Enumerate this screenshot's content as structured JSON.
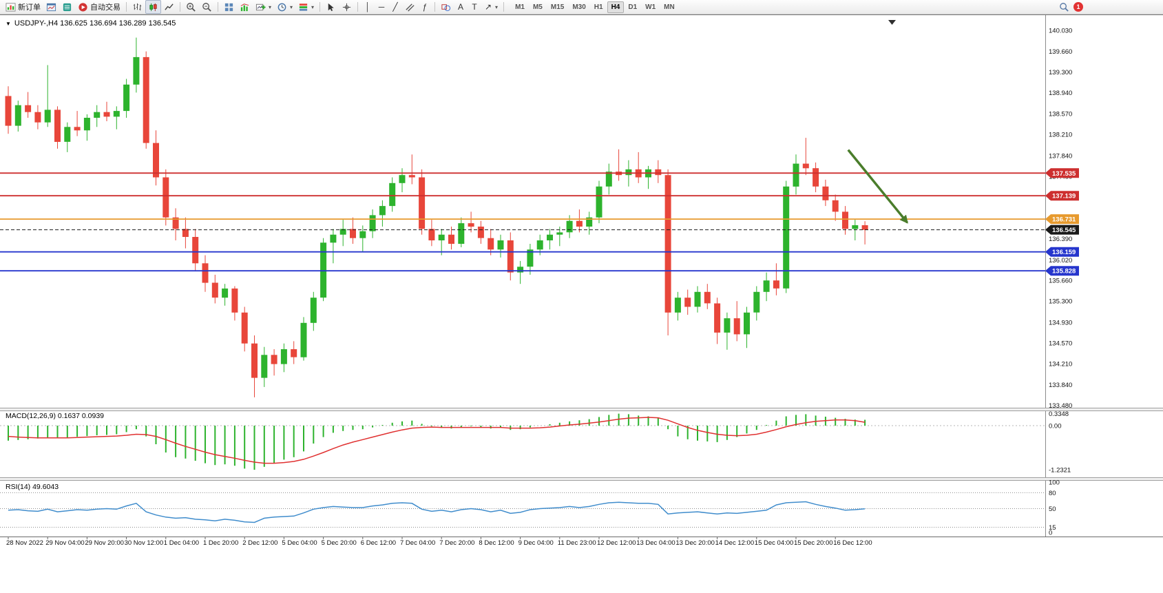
{
  "ui": {
    "caret": "▾",
    "header_caret": "▼"
  },
  "toolbar": {
    "new_order_label": "新订单",
    "autotrading_label": "自动交易",
    "drawing_glyphs": {
      "vertical_line": "│",
      "horizontal_line": "─",
      "trendline": "╱",
      "fibonacci": "ƒ",
      "text": "A",
      "label": "T",
      "arrow": "↗"
    },
    "timeframes": [
      "M1",
      "M5",
      "M15",
      "M30",
      "H1",
      "H4",
      "D1",
      "W1",
      "MN"
    ],
    "active_timeframe": "H4",
    "notification_count": "1"
  },
  "chart_data": {
    "type": "candlestick",
    "symbol": "USDJPY-",
    "period": "H4",
    "header": "USDJPY-,H4  136.625 136.694 136.289 136.545",
    "ohlc_display": {
      "open": "136.625",
      "high": "136.694",
      "low": "136.289",
      "close": "136.545"
    },
    "colors": {
      "bull": "#2db32d",
      "bear": "#e8463a",
      "macd_hist": "#2db32d",
      "macd_signal": "#e03030",
      "rsi": "#3f8ccc",
      "arrow": "#4a7d2b"
    },
    "price_axis_ticks": [
      "140.030",
      "139.660",
      "139.300",
      "138.940",
      "138.570",
      "138.210",
      "137.840",
      "137.480",
      "137.110",
      "136.760",
      "136.390",
      "136.020",
      "135.660",
      "135.300",
      "134.930",
      "134.570",
      "134.210",
      "133.840",
      "133.480"
    ],
    "levels": [
      {
        "price": 137.535,
        "label": "137.535",
        "color": "#cd2f2f"
      },
      {
        "price": 137.139,
        "label": "137.139",
        "color": "#cd2f2f"
      },
      {
        "price": 136.731,
        "label": "136.731",
        "color": "#e79a2e"
      },
      {
        "price": 136.159,
        "label": "136.159",
        "color": "#2636cd"
      },
      {
        "price": 135.828,
        "label": "135.828",
        "color": "#2636cd"
      }
    ],
    "bid": {
      "price": 136.545,
      "label": "136.545",
      "color": "#1a1a1a"
    },
    "candles": [
      [
        138.88,
        139.05,
        138.22,
        138.36
      ],
      [
        138.36,
        138.8,
        138.26,
        138.72
      ],
      [
        138.72,
        138.95,
        138.5,
        138.6
      ],
      [
        138.6,
        138.72,
        138.3,
        138.42
      ],
      [
        138.42,
        139.42,
        138.34,
        138.64
      ],
      [
        138.64,
        138.7,
        137.96,
        138.08
      ],
      [
        138.08,
        138.42,
        137.9,
        138.34
      ],
      [
        138.34,
        138.62,
        138.18,
        138.28
      ],
      [
        138.28,
        138.56,
        138.1,
        138.5
      ],
      [
        138.5,
        138.72,
        138.34,
        138.6
      ],
      [
        138.6,
        138.78,
        138.44,
        138.52
      ],
      [
        138.52,
        138.7,
        138.3,
        138.62
      ],
      [
        138.62,
        139.18,
        138.5,
        139.08
      ],
      [
        139.08,
        139.9,
        138.94,
        139.56
      ],
      [
        139.56,
        139.66,
        137.96,
        138.06
      ],
      [
        138.06,
        138.28,
        137.32,
        137.46
      ],
      [
        137.46,
        137.6,
        136.62,
        136.76
      ],
      [
        136.76,
        136.92,
        136.36,
        136.56
      ],
      [
        136.56,
        136.76,
        136.22,
        136.42
      ],
      [
        136.42,
        136.56,
        135.82,
        135.96
      ],
      [
        135.96,
        136.1,
        135.46,
        135.62
      ],
      [
        135.62,
        135.76,
        135.26,
        135.36
      ],
      [
        135.36,
        135.6,
        135.22,
        135.52
      ],
      [
        135.52,
        135.56,
        134.96,
        135.1
      ],
      [
        135.1,
        135.2,
        134.42,
        134.56
      ],
      [
        134.56,
        134.7,
        133.62,
        133.96
      ],
      [
        133.96,
        134.5,
        133.8,
        134.36
      ],
      [
        134.36,
        134.46,
        134.0,
        134.2
      ],
      [
        134.2,
        134.56,
        134.06,
        134.46
      ],
      [
        134.46,
        134.6,
        134.2,
        134.32
      ],
      [
        134.32,
        135.02,
        134.26,
        134.92
      ],
      [
        134.92,
        135.46,
        134.78,
        135.36
      ],
      [
        135.36,
        136.4,
        135.3,
        136.32
      ],
      [
        136.32,
        136.56,
        135.96,
        136.46
      ],
      [
        136.46,
        136.72,
        136.26,
        136.56
      ],
      [
        136.56,
        136.76,
        136.3,
        136.4
      ],
      [
        136.4,
        136.62,
        136.16,
        136.52
      ],
      [
        136.52,
        136.9,
        136.4,
        136.8
      ],
      [
        136.8,
        137.06,
        136.6,
        136.96
      ],
      [
        136.96,
        137.46,
        136.86,
        137.36
      ],
      [
        137.36,
        137.62,
        137.2,
        137.5
      ],
      [
        137.5,
        137.86,
        137.34,
        137.46
      ],
      [
        137.46,
        137.6,
        136.46,
        136.56
      ],
      [
        136.56,
        136.72,
        136.26,
        136.36
      ],
      [
        136.36,
        136.56,
        136.1,
        136.46
      ],
      [
        136.46,
        136.6,
        136.2,
        136.3
      ],
      [
        136.3,
        136.76,
        136.24,
        136.66
      ],
      [
        136.66,
        136.86,
        136.5,
        136.6
      ],
      [
        136.6,
        136.7,
        136.3,
        136.4
      ],
      [
        136.4,
        136.56,
        136.1,
        136.2
      ],
      [
        136.2,
        136.46,
        136.06,
        136.36
      ],
      [
        136.36,
        136.5,
        135.66,
        135.8
      ],
      [
        135.8,
        136.0,
        135.6,
        135.9
      ],
      [
        135.9,
        136.3,
        135.76,
        136.2
      ],
      [
        136.2,
        136.46,
        136.1,
        136.36
      ],
      [
        136.36,
        136.56,
        136.2,
        136.46
      ],
      [
        136.46,
        136.6,
        136.26,
        136.5
      ],
      [
        136.5,
        136.8,
        136.4,
        136.7
      ],
      [
        136.7,
        136.9,
        136.5,
        136.6
      ],
      [
        136.6,
        136.86,
        136.46,
        136.76
      ],
      [
        136.76,
        137.4,
        136.66,
        137.3
      ],
      [
        137.3,
        137.7,
        137.16,
        137.56
      ],
      [
        137.56,
        137.95,
        137.4,
        137.5
      ],
      [
        137.5,
        137.76,
        137.3,
        137.6
      ],
      [
        137.6,
        137.9,
        137.36,
        137.46
      ],
      [
        137.46,
        137.66,
        137.26,
        137.6
      ],
      [
        137.6,
        137.76,
        137.36,
        137.5
      ],
      [
        137.5,
        137.6,
        134.7,
        135.1
      ],
      [
        135.1,
        135.46,
        134.96,
        135.36
      ],
      [
        135.36,
        135.5,
        135.06,
        135.2
      ],
      [
        135.2,
        135.56,
        135.1,
        135.46
      ],
      [
        135.46,
        135.6,
        135.16,
        135.26
      ],
      [
        135.26,
        135.36,
        134.55,
        134.75
      ],
      [
        134.75,
        135.1,
        134.45,
        135.0
      ],
      [
        135.0,
        135.3,
        134.6,
        134.72
      ],
      [
        134.72,
        135.2,
        134.48,
        135.1
      ],
      [
        135.1,
        135.56,
        134.96,
        135.46
      ],
      [
        135.46,
        135.8,
        135.3,
        135.66
      ],
      [
        135.66,
        135.96,
        135.4,
        135.52
      ],
      [
        135.52,
        137.4,
        135.44,
        137.3
      ],
      [
        137.3,
        137.86,
        137.16,
        137.7
      ],
      [
        137.7,
        138.15,
        137.5,
        137.62
      ],
      [
        137.62,
        137.72,
        137.2,
        137.3
      ],
      [
        137.3,
        137.42,
        136.96,
        137.06
      ],
      [
        137.06,
        137.16,
        136.7,
        136.86
      ],
      [
        136.86,
        136.96,
        136.46,
        136.56
      ],
      [
        136.56,
        136.72,
        136.36,
        136.625
      ],
      [
        136.625,
        136.694,
        136.289,
        136.545
      ]
    ],
    "time_labels": [
      "28 Nov 2022",
      "29 Nov 04:00",
      "29 Nov 20:00",
      "30 Nov 12:00",
      "1 Dec 04:00",
      "1 Dec 20:00",
      "2 Dec 12:00",
      "5 Dec 04:00",
      "5 Dec 20:00",
      "6 Dec 12:00",
      "7 Dec 04:00",
      "7 Dec 20:00",
      "8 Dec 12:00",
      "9 Dec 04:00",
      "11 Dec 23:00",
      "12 Dec 12:00",
      "13 Dec 04:00",
      "13 Dec 20:00",
      "14 Dec 12:00",
      "15 Dec 04:00",
      "15 Dec 20:00",
      "16 Dec 12:00"
    ],
    "label_step": 4,
    "arrow": {
      "from": {
        "bar": 85.3,
        "price": 137.94
      },
      "to": {
        "bar": 91.3,
        "price": 136.67
      }
    },
    "macd": {
      "label": "MACD(12,26,9) 0.1637 0.0939",
      "axis": [
        {
          "label": "0.3348",
          "value": 0.3348
        },
        {
          "label": "0.00",
          "value": 0
        },
        {
          "label": "-1.2321",
          "value": -1.2321
        }
      ],
      "values": [
        -0.42,
        -0.4,
        -0.38,
        -0.36,
        -0.33,
        -0.35,
        -0.34,
        -0.31,
        -0.29,
        -0.27,
        -0.26,
        -0.24,
        -0.18,
        -0.1,
        -0.3,
        -0.52,
        -0.75,
        -0.88,
        -0.92,
        -0.98,
        -1.05,
        -1.1,
        -1.08,
        -1.12,
        -1.2,
        -1.2321,
        -1.15,
        -1.05,
        -0.95,
        -0.88,
        -0.72,
        -0.5,
        -0.32,
        -0.2,
        -0.15,
        -0.12,
        -0.1,
        -0.05,
        0.02,
        0.08,
        0.12,
        0.14,
        0.05,
        -0.02,
        -0.06,
        -0.08,
        -0.05,
        -0.02,
        -0.04,
        -0.08,
        -0.06,
        -0.12,
        -0.1,
        -0.05,
        0.0,
        0.04,
        0.08,
        0.12,
        0.15,
        0.18,
        0.24,
        0.3,
        0.3348,
        0.32,
        0.28,
        0.26,
        0.22,
        -0.1,
        -0.3,
        -0.38,
        -0.42,
        -0.44,
        -0.46,
        -0.4,
        -0.32,
        -0.22,
        -0.12,
        0.02,
        0.14,
        0.26,
        0.3,
        0.32,
        0.28,
        0.25,
        0.22,
        0.19,
        0.17,
        0.1637
      ],
      "signal": [
        -0.3,
        -0.32,
        -0.33,
        -0.34,
        -0.34,
        -0.34,
        -0.34,
        -0.33,
        -0.32,
        -0.31,
        -0.3,
        -0.29,
        -0.27,
        -0.24,
        -0.25,
        -0.3,
        -0.39,
        -0.49,
        -0.58,
        -0.66,
        -0.74,
        -0.81,
        -0.86,
        -0.91,
        -0.97,
        -1.02,
        -1.05,
        -1.05,
        -1.03,
        -1.0,
        -0.94,
        -0.85,
        -0.75,
        -0.64,
        -0.54,
        -0.46,
        -0.39,
        -0.32,
        -0.25,
        -0.18,
        -0.12,
        -0.07,
        -0.05,
        -0.04,
        -0.05,
        -0.05,
        -0.05,
        -0.05,
        -0.05,
        -0.05,
        -0.05,
        -0.07,
        -0.07,
        -0.07,
        -0.06,
        -0.04,
        -0.01,
        0.02,
        0.04,
        0.07,
        0.1,
        0.14,
        0.18,
        0.21,
        0.22,
        0.23,
        0.22,
        0.15,
        0.05,
        -0.05,
        -0.13,
        -0.19,
        -0.24,
        -0.27,
        -0.28,
        -0.27,
        -0.24,
        -0.18,
        -0.11,
        -0.03,
        0.03,
        0.08,
        0.12,
        0.14,
        0.16,
        0.16,
        0.14,
        0.0939
      ]
    },
    "rsi": {
      "label": "RSI(14) 49.6043",
      "levels": [
        80,
        50,
        15
      ],
      "axis": [
        {
          "label": "100",
          "value": 100
        },
        {
          "label": "80",
          "value": 80
        },
        {
          "label": "50",
          "value": 50
        },
        {
          "label": "15",
          "value": 15
        },
        {
          "label": "0",
          "value": 0
        }
      ],
      "values": [
        47,
        48,
        46,
        45,
        49,
        44,
        46,
        48,
        47,
        49,
        50,
        49,
        55,
        60,
        44,
        38,
        34,
        32,
        33,
        30,
        29,
        27,
        30,
        28,
        25,
        24,
        32,
        34,
        35,
        36,
        42,
        49,
        52,
        54,
        53,
        52,
        52,
        55,
        57,
        60,
        61,
        60,
        49,
        45,
        47,
        44,
        48,
        50,
        48,
        44,
        47,
        41,
        43,
        48,
        50,
        51,
        52,
        54,
        52,
        54,
        58,
        61,
        62,
        61,
        60,
        60,
        58,
        40,
        42,
        43,
        44,
        42,
        40,
        42,
        41,
        43,
        45,
        47,
        57,
        61,
        62,
        63,
        58,
        54,
        51,
        47,
        48,
        49.6
      ]
    }
  }
}
